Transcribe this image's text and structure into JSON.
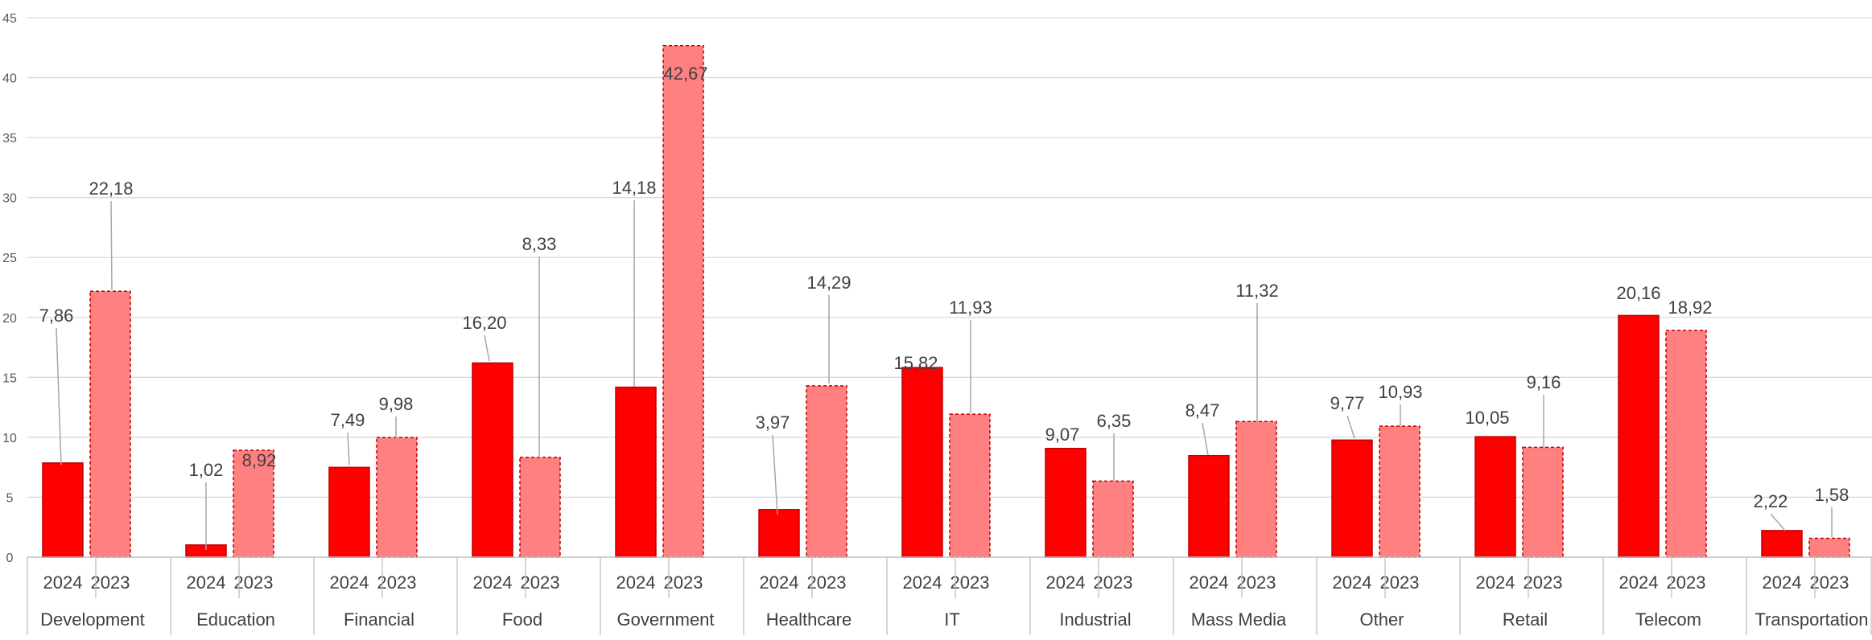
{
  "colors": {
    "bar_2024": "#ff0000",
    "bar_2023": "#ff8080",
    "bar_stroke": "#c00000",
    "grid": "#d9d9d9",
    "axis": "#bfbfbf",
    "leader": "#a6a6a6"
  },
  "chart_data": {
    "type": "bar",
    "title": "",
    "xlabel": "",
    "ylabel": "",
    "ylim": [
      0,
      45
    ],
    "yticks": [
      0,
      5,
      10,
      15,
      20,
      25,
      30,
      35,
      40,
      45
    ],
    "grid": true,
    "legend": "none",
    "decimal_separator": ",",
    "categories": [
      "Development",
      "Education",
      "Financial",
      "Food",
      "Government",
      "Healthcare",
      "IT",
      "Industrial",
      "Mass Media",
      "Other",
      "Retail",
      "Telecom",
      "Transportation"
    ],
    "series": [
      {
        "name": "2024",
        "values": [
          7.86,
          1.02,
          7.49,
          16.2,
          14.18,
          3.97,
          15.82,
          9.07,
          8.47,
          9.77,
          10.05,
          20.16,
          2.22
        ]
      },
      {
        "name": "2023",
        "values": [
          22.18,
          8.92,
          9.98,
          8.33,
          42.67,
          14.29,
          11.93,
          6.35,
          11.32,
          10.93,
          9.16,
          18.92,
          1.58
        ]
      }
    ]
  }
}
